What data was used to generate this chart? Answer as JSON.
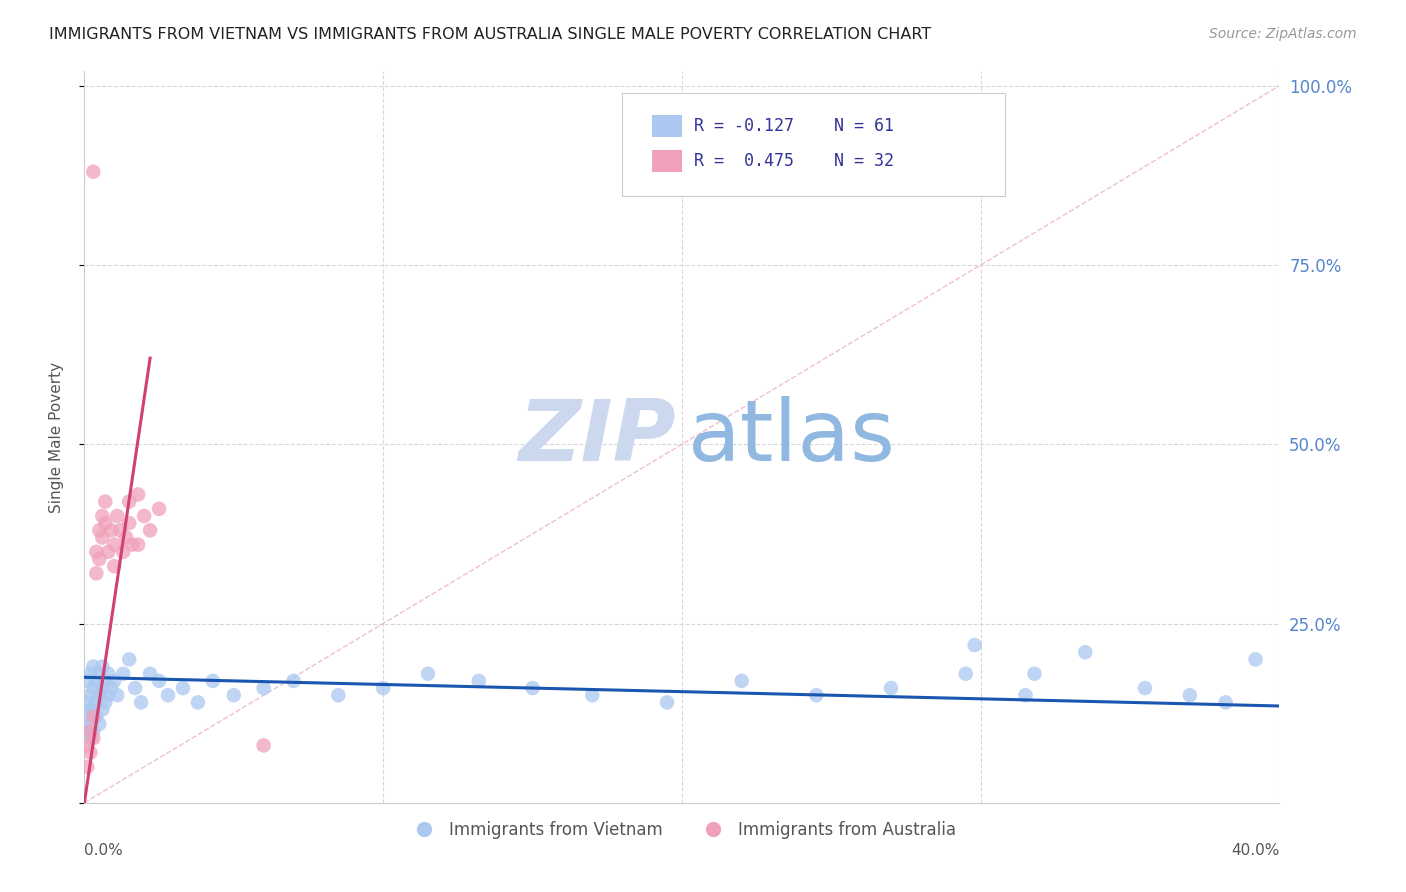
{
  "title": "IMMIGRANTS FROM VIETNAM VS IMMIGRANTS FROM AUSTRALIA SINGLE MALE POVERTY CORRELATION CHART",
  "source": "Source: ZipAtlas.com",
  "ylabel": "Single Male Poverty",
  "xlim": [
    0.0,
    0.4
  ],
  "ylim": [
    0.0,
    1.02
  ],
  "legend_label_vietnam": "Immigrants from Vietnam",
  "legend_label_australia": "Immigrants from Australia",
  "vietnam_color": "#aac8f0",
  "australia_color": "#f0a0b8",
  "vietnam_trend_color": "#1a56b0",
  "australia_trend_color": "#d04070",
  "ref_line_color": "#e0c0c8",
  "background_color": "#ffffff",
  "grid_color": "#d8d8d8",
  "right_axis_color": "#5585cc",
  "title_color": "#222222",
  "watermark_zip_color": "#ccd8ee",
  "watermark_atlas_color": "#90b8e8",
  "vietnam_x": [
    0.001,
    0.001,
    0.001,
    0.001,
    0.002,
    0.002,
    0.002,
    0.002,
    0.002,
    0.003,
    0.003,
    0.003,
    0.003,
    0.004,
    0.004,
    0.004,
    0.005,
    0.005,
    0.005,
    0.006,
    0.006,
    0.006,
    0.007,
    0.007,
    0.008,
    0.008,
    0.009,
    0.01,
    0.011,
    0.013,
    0.015,
    0.017,
    0.019,
    0.022,
    0.025,
    0.028,
    0.033,
    0.038,
    0.043,
    0.05,
    0.06,
    0.07,
    0.085,
    0.1,
    0.115,
    0.132,
    0.15,
    0.17,
    0.195,
    0.22,
    0.245,
    0.27,
    0.295,
    0.315,
    0.335,
    0.355,
    0.37,
    0.382,
    0.392,
    0.298,
    0.318
  ],
  "vietnam_y": [
    0.17,
    0.14,
    0.12,
    0.1,
    0.18,
    0.15,
    0.13,
    0.11,
    0.09,
    0.19,
    0.16,
    0.13,
    0.1,
    0.17,
    0.14,
    0.12,
    0.18,
    0.15,
    0.11,
    0.19,
    0.16,
    0.13,
    0.17,
    0.14,
    0.18,
    0.15,
    0.16,
    0.17,
    0.15,
    0.18,
    0.2,
    0.16,
    0.14,
    0.18,
    0.17,
    0.15,
    0.16,
    0.14,
    0.17,
    0.15,
    0.16,
    0.17,
    0.15,
    0.16,
    0.18,
    0.17,
    0.16,
    0.15,
    0.14,
    0.17,
    0.15,
    0.16,
    0.18,
    0.15,
    0.21,
    0.16,
    0.15,
    0.14,
    0.2,
    0.22,
    0.18
  ],
  "australia_x": [
    0.001,
    0.001,
    0.002,
    0.002,
    0.003,
    0.003,
    0.004,
    0.004,
    0.005,
    0.005,
    0.006,
    0.006,
    0.007,
    0.007,
    0.008,
    0.009,
    0.01,
    0.011,
    0.012,
    0.013,
    0.014,
    0.015,
    0.016,
    0.018,
    0.02,
    0.022,
    0.015,
    0.01,
    0.025,
    0.018,
    0.06,
    0.003
  ],
  "australia_y": [
    0.05,
    0.08,
    0.1,
    0.07,
    0.12,
    0.09,
    0.35,
    0.32,
    0.38,
    0.34,
    0.4,
    0.37,
    0.42,
    0.39,
    0.35,
    0.38,
    0.36,
    0.4,
    0.38,
    0.35,
    0.37,
    0.39,
    0.36,
    0.43,
    0.4,
    0.38,
    0.42,
    0.33,
    0.41,
    0.36,
    0.08,
    0.88
  ],
  "aus_trend_x0": 0.0,
  "aus_trend_y0": 0.0,
  "aus_trend_x1": 0.022,
  "aus_trend_y1": 0.62,
  "viet_trend_x0": 0.0,
  "viet_trend_y0": 0.175,
  "viet_trend_x1": 0.4,
  "viet_trend_y1": 0.135
}
